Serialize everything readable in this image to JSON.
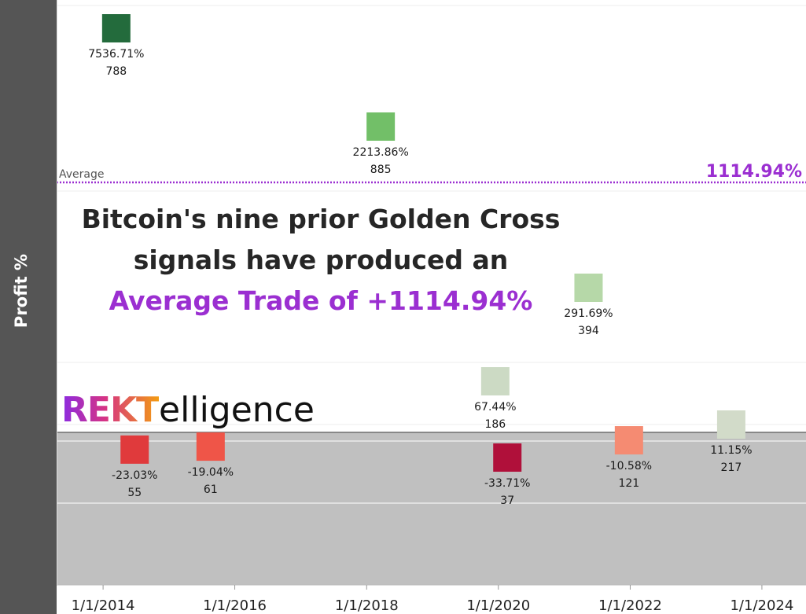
{
  "chart_data": {
    "type": "scatter",
    "ylabel": "Profit %",
    "xlabel": "",
    "x_ticks": [
      "1/1/2014",
      "1/1/2016",
      "1/1/2018",
      "1/1/2020",
      "1/1/2022",
      "1/1/2024"
    ],
    "x_range": [
      "2013-06-01",
      "2024-06-15"
    ],
    "points": [
      {
        "date": "2014-03-15",
        "profit_pct": 7536.71,
        "profit_label": "7536.71%",
        "days": 788,
        "color": "#236b3c"
      },
      {
        "date": "2014-06-25",
        "profit_pct": -23.03,
        "profit_label": "-23.03%",
        "days": 55,
        "color": "#e03a3c"
      },
      {
        "date": "2015-08-20",
        "profit_pct": -19.04,
        "profit_label": "-19.04%",
        "days": 61,
        "color": "#ef5548"
      },
      {
        "date": "2018-03-20",
        "profit_pct": 2213.86,
        "profit_label": "2213.86%",
        "days": 885,
        "color": "#72bf68"
      },
      {
        "date": "2019-12-15",
        "profit_pct": 67.44,
        "profit_label": "67.44%",
        "days": 186,
        "color": "#ccdac4"
      },
      {
        "date": "2020-02-20",
        "profit_pct": -33.71,
        "profit_label": "-33.71%",
        "days": 37,
        "color": "#b0103a"
      },
      {
        "date": "2021-05-15",
        "profit_pct": 291.69,
        "profit_label": "291.69%",
        "days": 394,
        "color": "#b6d8a8"
      },
      {
        "date": "2021-12-25",
        "profit_pct": -10.58,
        "profit_label": "-10.58%",
        "days": 121,
        "color": "#f58b72"
      },
      {
        "date": "2023-07-15",
        "profit_pct": 11.15,
        "profit_label": "11.15%",
        "days": 217,
        "color": "#d2dbc9"
      }
    ],
    "average": {
      "label": "Average",
      "value": 1114.94,
      "value_label": "1114.94%",
      "color": "#9b2fd1"
    },
    "negative_band_color": "#c0c0c0",
    "grid": true
  },
  "headline": {
    "line1": "Bitcoin's nine prior Golden Cross",
    "line2": "signals have produced an",
    "line3": "Average Trade of +1114.94%",
    "accent_color": "#9b2fd1"
  },
  "logo": {
    "brand": "REKT",
    "rest": "elligence"
  }
}
